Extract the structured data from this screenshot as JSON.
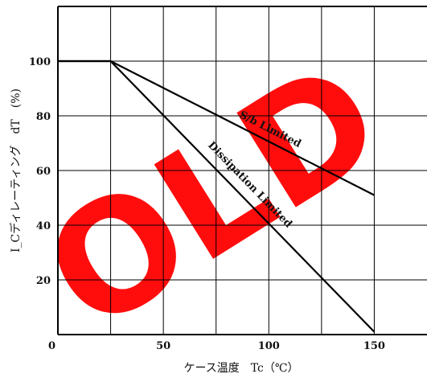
{
  "chart_data": {
    "type": "line",
    "xlabel": "ケース温度　Tc（℃）",
    "ylabel": "I_Cディレーティング　dT　(%)",
    "xlim": [
      0,
      175
    ],
    "ylim": [
      0,
      120
    ],
    "xticks": [
      0,
      50,
      100,
      150
    ],
    "yticks": [
      20,
      40,
      60,
      80,
      100
    ],
    "x_gridlines": [
      25,
      50,
      75,
      100,
      125,
      150
    ],
    "y_gridlines": [
      20,
      40,
      60,
      80,
      100
    ],
    "grid": true,
    "watermark": {
      "text": "OLD",
      "color": "#ff0000"
    },
    "series": [
      {
        "name": "S/b Limited",
        "x": [
          0,
          25,
          150
        ],
        "y": [
          100,
          100,
          51
        ]
      },
      {
        "name": "Dissipation Limited",
        "x": [
          0,
          25,
          150
        ],
        "y": [
          100,
          100,
          1
        ]
      }
    ],
    "annotations": [
      {
        "text": "S/b Limited",
        "x": 100,
        "y": 74,
        "series": 0
      },
      {
        "text": "Dissipation Limited",
        "x": 90,
        "y": 54,
        "series": 1
      }
    ]
  }
}
